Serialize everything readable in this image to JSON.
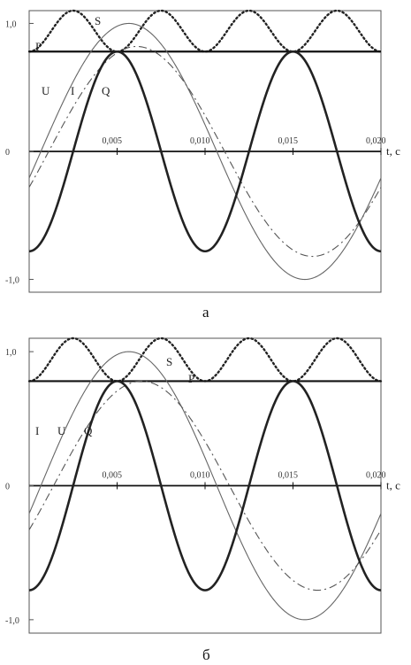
{
  "chart_data": [
    {
      "type": "line",
      "panel_caption": "а",
      "x_axis_label": "t, c",
      "x_tick_labels": [
        "0,005",
        "0,010",
        "0,015",
        "0,020"
      ],
      "y_tick_labels": [
        "1,0",
        "0",
        "-1,0"
      ],
      "xlim": [
        0,
        0.02
      ],
      "ylim": [
        -1.1,
        1.1
      ],
      "series": [
        {
          "name": "S",
          "style": "dotted",
          "description": "apparent power",
          "values_at": {
            "x": [
              0,
              0.0025,
              0.005,
              0.0075,
              0.01,
              0.0125,
              0.015,
              0.0175,
              0.02
            ],
            "y": [
              0.78,
              1.1,
              0.78,
              1.1,
              0.78,
              1.1,
              0.78,
              1.1,
              0.78
            ]
          }
        },
        {
          "name": "P",
          "style": "solid-thick",
          "description": "active power (constant)",
          "values_at": {
            "x": [
              0,
              0.02
            ],
            "y": [
              0.78,
              0.78
            ]
          }
        },
        {
          "name": "U",
          "style": "thin",
          "amplitude": 1.0,
          "phase_deg": -12
        },
        {
          "name": "I",
          "style": "dash-dot",
          "amplitude": 0.82,
          "phase_deg": -20
        },
        {
          "name": "Q",
          "style": "thick",
          "amplitude": 0.78,
          "period": 0.01
        }
      ],
      "series_labels": [
        "S",
        "P",
        "U",
        "I",
        "Q"
      ]
    },
    {
      "type": "line",
      "panel_caption": "б",
      "x_axis_label": "t, c",
      "x_tick_labels": [
        "0,005",
        "0,010",
        "0,015",
        "0,020"
      ],
      "y_tick_labels": [
        "1,0",
        "0",
        "-1,0"
      ],
      "xlim": [
        0,
        0.02
      ],
      "ylim": [
        -1.1,
        1.1
      ],
      "series": [
        {
          "name": "S",
          "style": "dotted",
          "description": "apparent power",
          "values_at": {
            "x": [
              0,
              0.0025,
              0.005,
              0.0075,
              0.01,
              0.0125,
              0.015,
              0.0175,
              0.02
            ],
            "y": [
              0.78,
              1.1,
              0.78,
              1.1,
              0.78,
              1.1,
              0.78,
              1.1,
              0.78
            ]
          }
        },
        {
          "name": "P",
          "style": "solid-thick",
          "description": "active power (constant)",
          "values_at": {
            "x": [
              0,
              0.02
            ],
            "y": [
              0.78,
              0.78
            ]
          }
        },
        {
          "name": "U",
          "style": "thin",
          "amplitude": 1.0,
          "phase_deg": -12
        },
        {
          "name": "I",
          "style": "dash-dot",
          "amplitude": 0.78,
          "phase_deg": -25
        },
        {
          "name": "Q",
          "style": "thick",
          "amplitude": 0.78,
          "period": 0.01
        }
      ],
      "series_labels": [
        "I",
        "U",
        "Q",
        "S",
        "P"
      ]
    }
  ]
}
